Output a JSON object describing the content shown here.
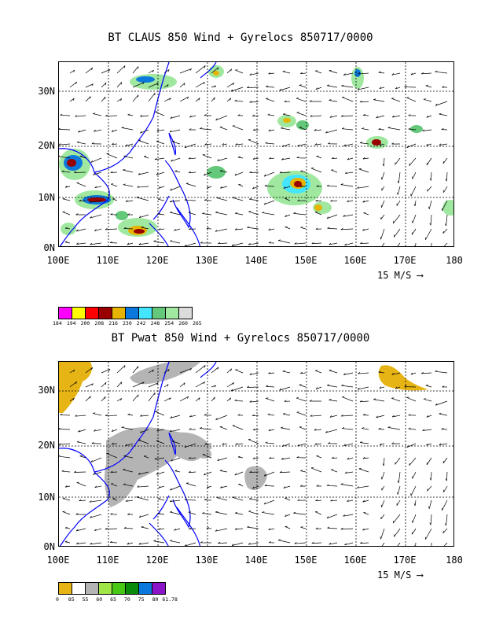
{
  "panel1": {
    "title": "BT CLAUS 850 Wind + Gyrelocs 850717/0000",
    "yticks": [
      "30N",
      "20N",
      "10N",
      "0N"
    ],
    "xticks": [
      "100E",
      "110E",
      "120E",
      "130E",
      "140E",
      "150E",
      "160E",
      "170E",
      "180"
    ],
    "scale_label": "15 M/S",
    "legend_colors": [
      "#ff00ff",
      "#ffff00",
      "#ff0000",
      "#990000",
      "#e6b400",
      "#0a78dc",
      "#44e6ff",
      "#64c87a",
      "#a0e8a0",
      "#dcdcdc"
    ],
    "legend_labels": [
      "184",
      "194",
      "200",
      "208",
      "216",
      "230",
      "242",
      "248",
      "254",
      "260",
      "265"
    ]
  },
  "panel2": {
    "title": "BT Pwat 850 Wind + Gyrelocs 850717/0000",
    "yticks": [
      "30N",
      "20N",
      "10N",
      "0N"
    ],
    "xticks": [
      "100E",
      "110E",
      "120E",
      "130E",
      "140E",
      "150E",
      "160E",
      "170E",
      "180"
    ],
    "scale_label": "15 M/S",
    "legend_colors": [
      "#e6b414",
      "#ffffff",
      "#b4b4b4",
      "#a0e646",
      "#46c814",
      "#0a8c0a",
      "#0a78dc",
      "#8c14c8"
    ],
    "legend_labels": [
      "0",
      "85",
      "55",
      "60",
      "65",
      "70",
      "75",
      "80",
      "61.78"
    ]
  },
  "colors": {
    "coast": "#0000ff",
    "frame": "#000000"
  }
}
